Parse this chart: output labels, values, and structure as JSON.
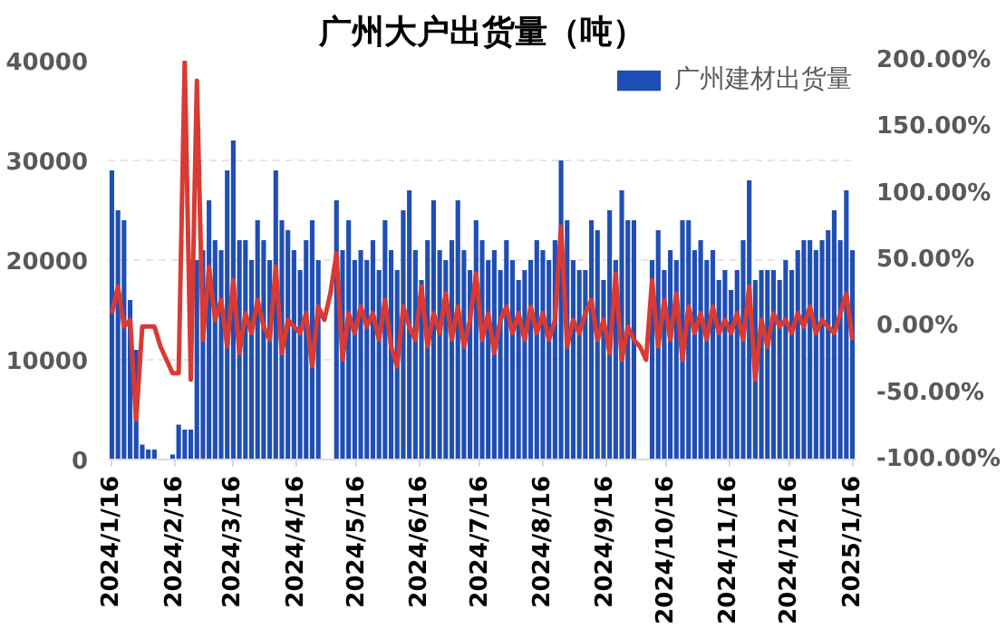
{
  "chart_data": {
    "type": "bar",
    "title": "广州大户出货量（吨）",
    "x": [
      "2024-01-16",
      "2024-01-19",
      "2024-01-22",
      "2024-01-25",
      "2024-01-28",
      "2024-01-31",
      "2024-02-03",
      "2024-02-06",
      "2024-02-09",
      "2024-02-12",
      "2024-02-15",
      "2024-02-18",
      "2024-02-21",
      "2024-02-24",
      "2024-02-27",
      "2024-03-01",
      "2024-03-04",
      "2024-03-07",
      "2024-03-10",
      "2024-03-13",
      "2024-03-16",
      "2024-03-19",
      "2024-03-22",
      "2024-03-25",
      "2024-03-28",
      "2024-03-31",
      "2024-04-03",
      "2024-04-06",
      "2024-04-09",
      "2024-04-12",
      "2024-04-15",
      "2024-04-18",
      "2024-04-21",
      "2024-04-24",
      "2024-04-27",
      "2024-04-30",
      "2024-05-03",
      "2024-05-06",
      "2024-05-09",
      "2024-05-12",
      "2024-05-15",
      "2024-05-18",
      "2024-05-21",
      "2024-05-24",
      "2024-05-27",
      "2024-05-30",
      "2024-06-02",
      "2024-06-05",
      "2024-06-08",
      "2024-06-11",
      "2024-06-14",
      "2024-06-17",
      "2024-06-20",
      "2024-06-23",
      "2024-06-26",
      "2024-06-29",
      "2024-07-02",
      "2024-07-05",
      "2024-07-08",
      "2024-07-11",
      "2024-07-14",
      "2024-07-17",
      "2024-07-20",
      "2024-07-23",
      "2024-07-26",
      "2024-07-29",
      "2024-08-01",
      "2024-08-04",
      "2024-08-07",
      "2024-08-10",
      "2024-08-13",
      "2024-08-16",
      "2024-08-19",
      "2024-08-22",
      "2024-08-25",
      "2024-08-28",
      "2024-08-31",
      "2024-09-03",
      "2024-09-06",
      "2024-09-09",
      "2024-09-12",
      "2024-09-15",
      "2024-09-18",
      "2024-09-21",
      "2024-09-24",
      "2024-09-27",
      "2024-09-30",
      "2024-10-03",
      "2024-10-06",
      "2024-10-09",
      "2024-10-12",
      "2024-10-15",
      "2024-10-18",
      "2024-10-21",
      "2024-10-24",
      "2024-10-27",
      "2024-10-30",
      "2024-11-02",
      "2024-11-05",
      "2024-11-08",
      "2024-11-11",
      "2024-11-14",
      "2024-11-17",
      "2024-11-20",
      "2024-11-23",
      "2024-11-26",
      "2024-11-29",
      "2024-12-02",
      "2024-12-05",
      "2024-12-08",
      "2024-12-11",
      "2024-12-14",
      "2024-12-17",
      "2024-12-20",
      "2024-12-23",
      "2024-12-26",
      "2024-12-29",
      "2025-01-01",
      "2025-01-04",
      "2025-01-07",
      "2025-01-10",
      "2025-01-13",
      "2025-01-16"
    ],
    "series": [
      {
        "name": "广州建材出货量",
        "color": "#1f4eb4",
        "values": [
          29000,
          25000,
          24000,
          16000,
          11000,
          1500,
          1000,
          1000,
          null,
          null,
          500,
          3500,
          3000,
          3000,
          20000,
          21000,
          26000,
          22000,
          21000,
          29000,
          32000,
          22000,
          22000,
          20000,
          24000,
          22000,
          20000,
          29000,
          24000,
          23000,
          21000,
          19000,
          22000,
          24000,
          20000,
          null,
          null,
          26000,
          21000,
          24000,
          20000,
          21000,
          20000,
          22000,
          19000,
          24000,
          21000,
          19000,
          25000,
          27000,
          21000,
          18000,
          22000,
          26000,
          21000,
          20000,
          22000,
          26000,
          21000,
          19000,
          24000,
          22000,
          20000,
          21000,
          19000,
          22000,
          20000,
          18000,
          19000,
          20000,
          22000,
          21000,
          20000,
          22000,
          30000,
          24000,
          20000,
          19000,
          19000,
          24000,
          23000,
          18000,
          25000,
          20000,
          27000,
          24000,
          24000,
          null,
          null,
          20000,
          23000,
          19000,
          21000,
          20000,
          24000,
          24000,
          21000,
          22000,
          20000,
          21000,
          18000,
          19000,
          17000,
          19000,
          22000,
          28000,
          18000,
          19000,
          19000,
          19000,
          18000,
          20000,
          19000,
          21000,
          22000,
          22000,
          21000,
          22000,
          23000,
          25000,
          22000,
          27000,
          21000
        ]
      },
      {
        "type": "line",
        "axis": "y2",
        "color": "#d93a33",
        "values": [
          10,
          30,
          0,
          5,
          -70,
          0,
          0,
          0,
          -15,
          -25,
          -35,
          -35,
          200,
          -40,
          185,
          -10,
          45,
          5,
          20,
          -15,
          35,
          -20,
          10,
          -5,
          20,
          0,
          -10,
          45,
          -20,
          5,
          0,
          -5,
          10,
          -30,
          15,
          5,
          25,
          55,
          -25,
          10,
          -5,
          15,
          0,
          10,
          -10,
          20,
          -15,
          -30,
          15,
          0,
          -10,
          30,
          -15,
          10,
          -5,
          25,
          -10,
          15,
          -15,
          5,
          40,
          -10,
          10,
          -20,
          5,
          15,
          -5,
          10,
          -10,
          15,
          -5,
          10,
          -10,
          5,
          75,
          -15,
          5,
          -5,
          10,
          20,
          -10,
          5,
          -20,
          40,
          -25,
          0,
          -10,
          -15,
          -25,
          35,
          -15,
          20,
          -10,
          25,
          -25,
          15,
          -5,
          10,
          -10,
          15,
          -5,
          5,
          -5,
          10,
          -10,
          30,
          -40,
          5,
          -15,
          10,
          0,
          5,
          -5,
          10,
          0,
          15,
          -5,
          5,
          0,
          -5,
          10,
          25,
          -10
        ]
      }
    ],
    "xlim": [
      "2024-01-14",
      "2025-01-18"
    ],
    "xticks": [
      {
        "value": "2024-01-16",
        "label": "2024/1/16"
      },
      {
        "value": "2024-02-16",
        "label": "2024/2/16"
      },
      {
        "value": "2024-03-16",
        "label": "2024/3/16"
      },
      {
        "value": "2024-04-16",
        "label": "2024/4/16"
      },
      {
        "value": "2024-05-16",
        "label": "2024/5/16"
      },
      {
        "value": "2024-06-16",
        "label": "2024/6/16"
      },
      {
        "value": "2024-07-16",
        "label": "2024/7/16"
      },
      {
        "value": "2024-08-16",
        "label": "2024/8/16"
      },
      {
        "value": "2024-09-16",
        "label": "2024/9/16"
      },
      {
        "value": "2024-10-16",
        "label": "2024/10/16"
      },
      {
        "value": "2024-11-16",
        "label": "2024/11/16"
      },
      {
        "value": "2024-12-16",
        "label": "2024/12/16"
      },
      {
        "value": "2025-01-16",
        "label": "2025/1/16"
      }
    ],
    "ylim": [
      0,
      40000
    ],
    "yticks": [
      0,
      10000,
      20000,
      30000,
      40000
    ],
    "y2lim": [
      -100,
      200
    ],
    "y2ticks": [
      {
        "value": -100,
        "label": "-100.00%"
      },
      {
        "value": -50,
        "label": "-50.00%"
      },
      {
        "value": 0,
        "label": "0.00%"
      },
      {
        "value": 50,
        "label": "50.00%"
      },
      {
        "value": 100,
        "label": "100.00%"
      },
      {
        "value": 150,
        "label": "150.00%"
      },
      {
        "value": 200,
        "label": "200.00%"
      }
    ],
    "grid": "y",
    "legend": "top right"
  }
}
